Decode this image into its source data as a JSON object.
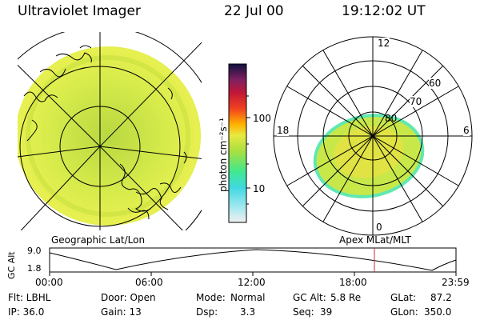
{
  "header": {
    "title": "Ultraviolet Imager",
    "date": "22 Jul 00",
    "time": "19:12:02 UT"
  },
  "colorbar": {
    "unit_label": "photon cm⁻²s⁻¹",
    "ticks": [
      "100",
      "10"
    ]
  },
  "polar_plot": {
    "mlt_labels": {
      "top": "12",
      "left": "18",
      "right": "6",
      "bottom": "0"
    },
    "lat_labels": [
      "60",
      "70",
      "80"
    ]
  },
  "footer_labels": {
    "geo": "Geographic Lat/Lon",
    "apex": "Apex MLat/MLT"
  },
  "altitude_strip": {
    "axis_label": "GC Alt",
    "y_ticks": [
      "9.0",
      "1.8"
    ],
    "x_ticks": [
      "00:00",
      "06:00",
      "12:00",
      "18:00",
      "23:59"
    ],
    "current_time_fraction": 0.8
  },
  "status": {
    "flt": "Flt: LBHL",
    "ip": "IP: 36.0",
    "door": "Door: Open",
    "gain": "Gain: 13",
    "mode_label": "Mode:",
    "mode_value": "Normal",
    "dsp_label": "Dsp:",
    "dsp_value": "3.3",
    "gcalt_label": "GC Alt:",
    "gcalt_value": "5.8 Re",
    "seq_label": "Seq:",
    "seq_value": "39",
    "glat_label": "GLat:",
    "glat_value": "87.2",
    "glon_label": "GLon:",
    "glon_value": "350.0"
  },
  "colors": {
    "aurora_main": "#c8e84a",
    "aurora_high": "#f0e040",
    "aurora_edge": "#60e8b0",
    "marker": "#c03030"
  }
}
